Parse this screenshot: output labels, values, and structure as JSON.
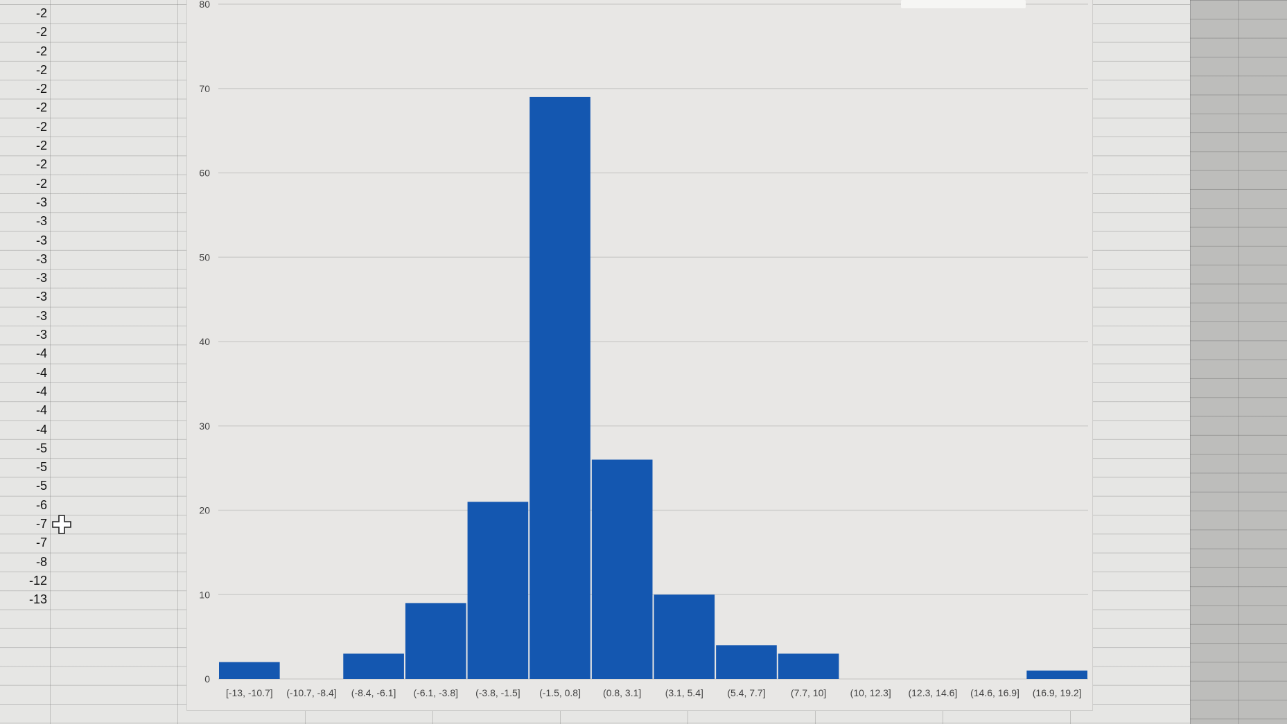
{
  "spreadsheet": {
    "column_values": [
      "-2",
      "-2",
      "-2",
      "-2",
      "-2",
      "-2",
      "-2",
      "-2",
      "-2",
      "-2",
      "-3",
      "-3",
      "-3",
      "-3",
      "-3",
      "-3",
      "-3",
      "-3",
      "-4",
      "-4",
      "-4",
      "-4",
      "-4",
      "-5",
      "-5",
      "-5",
      "-6",
      "-7",
      "-7",
      "-8",
      "-12",
      "-13"
    ]
  },
  "chart_data": {
    "type": "bar",
    "title": "",
    "xlabel": "",
    "ylabel": "",
    "ylim": [
      0,
      80
    ],
    "yticks": [
      0,
      10,
      20,
      30,
      40,
      50,
      60,
      70,
      80
    ],
    "grid": true,
    "categories": [
      "[-13, -10.7]",
      "(-10.7, -8.4]",
      "(-8.4, -6.1]",
      "(-6.1, -3.8]",
      "(-3.8, -1.5]",
      "(-1.5, 0.8]",
      "(0.8, 3.1]",
      "(3.1, 5.4]",
      "(5.4, 7.7]",
      "(7.7, 10]",
      "(10, 12.3]",
      "(12.3, 14.6]",
      "(14.6, 16.9]",
      "(16.9, 19.2]"
    ],
    "values": [
      2,
      0,
      3,
      9,
      21,
      69,
      26,
      10,
      4,
      3,
      0,
      0,
      0,
      1
    ],
    "colors": {
      "bar": "#1457b0",
      "grid": "#cfcfcd",
      "axis_text": "#444444"
    }
  }
}
